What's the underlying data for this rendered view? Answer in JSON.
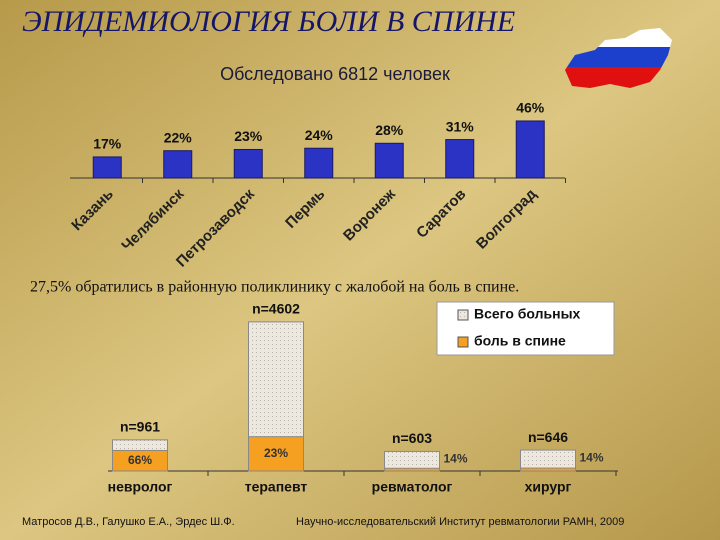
{
  "title": "ЭПИДЕМИОЛОГИЯ БОЛИ В СПИНЕ",
  "chart_data": [
    {
      "type": "bar",
      "title": "Обследовано 6812 человек",
      "categories": [
        "Казань",
        "Челябинск",
        "Петрозаводск",
        "Пермь",
        "Воронеж",
        "Саратов",
        "Волгоград"
      ],
      "values": [
        17,
        22,
        23,
        24,
        28,
        31,
        46
      ],
      "value_labels": [
        "17%",
        "22%",
        "23%",
        "24%",
        "28%",
        "31%",
        "46%"
      ],
      "color": "#2b33c4",
      "ylim": [
        0,
        50
      ]
    },
    {
      "type": "stacked_share_bar",
      "title": "27,5% обратились в районную поликлинику с жалобой на боль в спине.",
      "categories": [
        "невролог",
        "терапевт",
        "ревматолог",
        "хирург"
      ],
      "series": [
        {
          "name": "Всего больных",
          "color": "#e6e2da",
          "values": [
            961,
            4602,
            603,
            646
          ],
          "value_labels": [
            "n=961",
            "n=4602",
            "n=603",
            "n=646"
          ]
        },
        {
          "name": "боль в спине",
          "color": "#f5a020",
          "values": [
            66,
            23,
            14,
            14
          ],
          "value_labels": [
            "66%",
            "23%",
            "14%",
            "14%"
          ]
        }
      ],
      "ylim": [
        0,
        5000
      ],
      "legend": "top-right"
    }
  ],
  "footer": {
    "left": "Матросов Д.В., Галушко Е.А., Эрдес Ш.Ф.",
    "right": "Научно-исследовательский Институт ревматологии РАМН, 2009"
  }
}
